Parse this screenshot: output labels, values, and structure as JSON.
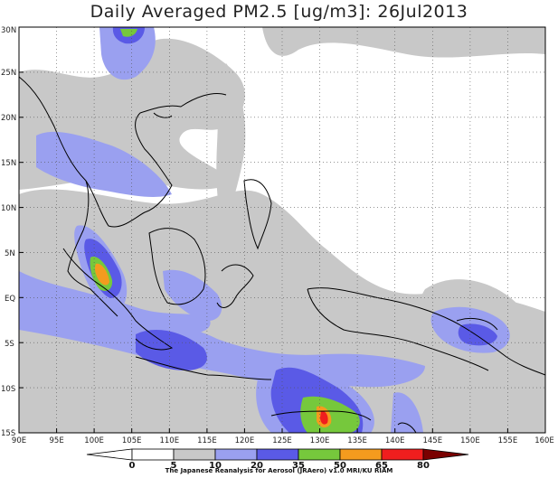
{
  "title": "Daily Averaged PM2.5 [ug/m3]: 26Jul2013",
  "credit": "The Japanese Reanalysis for Aerosol (JRAero) v1.0 MRI/KU RIAM",
  "map": {
    "lon_range": [
      90,
      160
    ],
    "lat_range": [
      -15,
      30
    ],
    "x_ticks": [
      "90E",
      "95E",
      "100E",
      "105E",
      "110E",
      "115E",
      "120E",
      "125E",
      "130E",
      "135E",
      "140E",
      "145E",
      "150E",
      "155E",
      "160E"
    ],
    "y_ticks": [
      "30N",
      "25N",
      "20N",
      "15N",
      "10N",
      "5N",
      "EQ",
      "5S",
      "10S",
      "15S"
    ],
    "grid": "dotted"
  },
  "colorbar": {
    "levels": [
      "0",
      "5",
      "10",
      "20",
      "35",
      "50",
      "65",
      "80"
    ],
    "colors": [
      "#ffffff",
      "#ffffff",
      "#c8c8c8",
      "#9aa0f0",
      "#5a5ae6",
      "#76c83c",
      "#f49b1e",
      "#f01e1e",
      "#7a0000"
    ]
  }
}
